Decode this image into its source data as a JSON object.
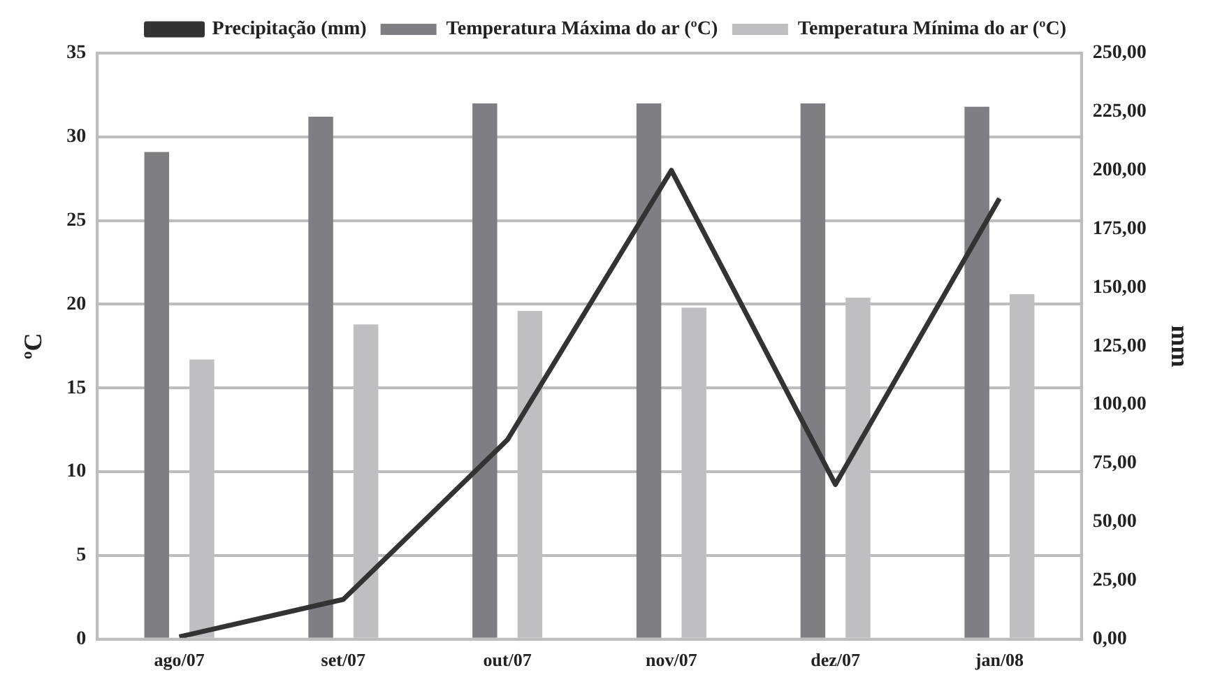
{
  "chart_data": {
    "type": "bar",
    "categories": [
      "ago/07",
      "set/07",
      "out/07",
      "nov/07",
      "dez/07",
      "jan/08"
    ],
    "ylabel": "ºC",
    "y2label": "mm",
    "series": [
      {
        "name": "Temperatura Máxima do ar (ºC)",
        "color": "#7f7f83",
        "values": [
          29.1,
          31.2,
          32,
          32,
          32,
          31.8
        ]
      },
      {
        "name": "Temperatura Mínima do ar (ºC)",
        "color": "#bfbfc1",
        "values": [
          16.7,
          18.8,
          19.6,
          19.8,
          20.4,
          20.6
        ]
      },
      {
        "name": "Precipitação (mm)",
        "type": "line",
        "axis": "y2",
        "color": "#333333",
        "values": [
          1,
          17,
          85,
          200,
          66,
          188
        ]
      }
    ],
    "ylim": [
      0,
      35
    ],
    "yticks": [
      0,
      5,
      10,
      15,
      20,
      25,
      30,
      35
    ],
    "y2lim": [
      0,
      250
    ],
    "y2ticks": [
      {
        "value": 0,
        "label": "0,00"
      },
      {
        "value": 25,
        "label": "25,00"
      },
      {
        "value": 50,
        "label": "50,00"
      },
      {
        "value": 75,
        "label": "75,00"
      },
      {
        "value": 100,
        "label": "100,00"
      },
      {
        "value": 125,
        "label": "125,00"
      },
      {
        "value": 150,
        "label": "150,00"
      },
      {
        "value": 175,
        "label": "175,00"
      },
      {
        "value": 200,
        "label": "200,00"
      },
      {
        "value": 225,
        "label": "225,00"
      },
      {
        "value": 250,
        "label": "250,00"
      }
    ],
    "grid": "y",
    "legend": "top",
    "marker": "none",
    "line_style": "solid"
  }
}
